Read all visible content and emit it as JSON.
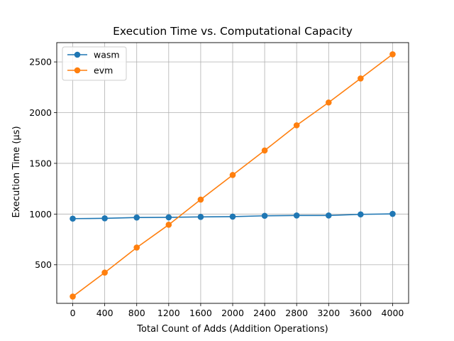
{
  "chart_data": {
    "type": "line",
    "title": "Execution Time vs. Computational Capacity",
    "xlabel": "Total Count of Adds (Addition Operations)",
    "ylabel": "Execution Time (µs)",
    "x": [
      0,
      400,
      800,
      1200,
      1600,
      2000,
      2400,
      2800,
      3200,
      3600,
      4000
    ],
    "x_ticks": [
      "0",
      "400",
      "800",
      "1200",
      "1600",
      "2000",
      "2400",
      "2800",
      "3200",
      "3600",
      "4000"
    ],
    "y_ticks": [
      "500",
      "1000",
      "1500",
      "2000",
      "2500"
    ],
    "xlim": [
      -200,
      4200
    ],
    "ylim": [
      120,
      2690
    ],
    "grid": true,
    "legend_position": "upper-left",
    "series": [
      {
        "name": "wasm",
        "color": "#1f77b4",
        "values": [
          955,
          958,
          966,
          968,
          972,
          975,
          983,
          986,
          986,
          997,
          1002
        ]
      },
      {
        "name": "evm",
        "color": "#ff7f0e",
        "values": [
          187,
          423,
          670,
          895,
          1143,
          1385,
          1627,
          1875,
          2100,
          2337,
          2575
        ]
      }
    ]
  }
}
